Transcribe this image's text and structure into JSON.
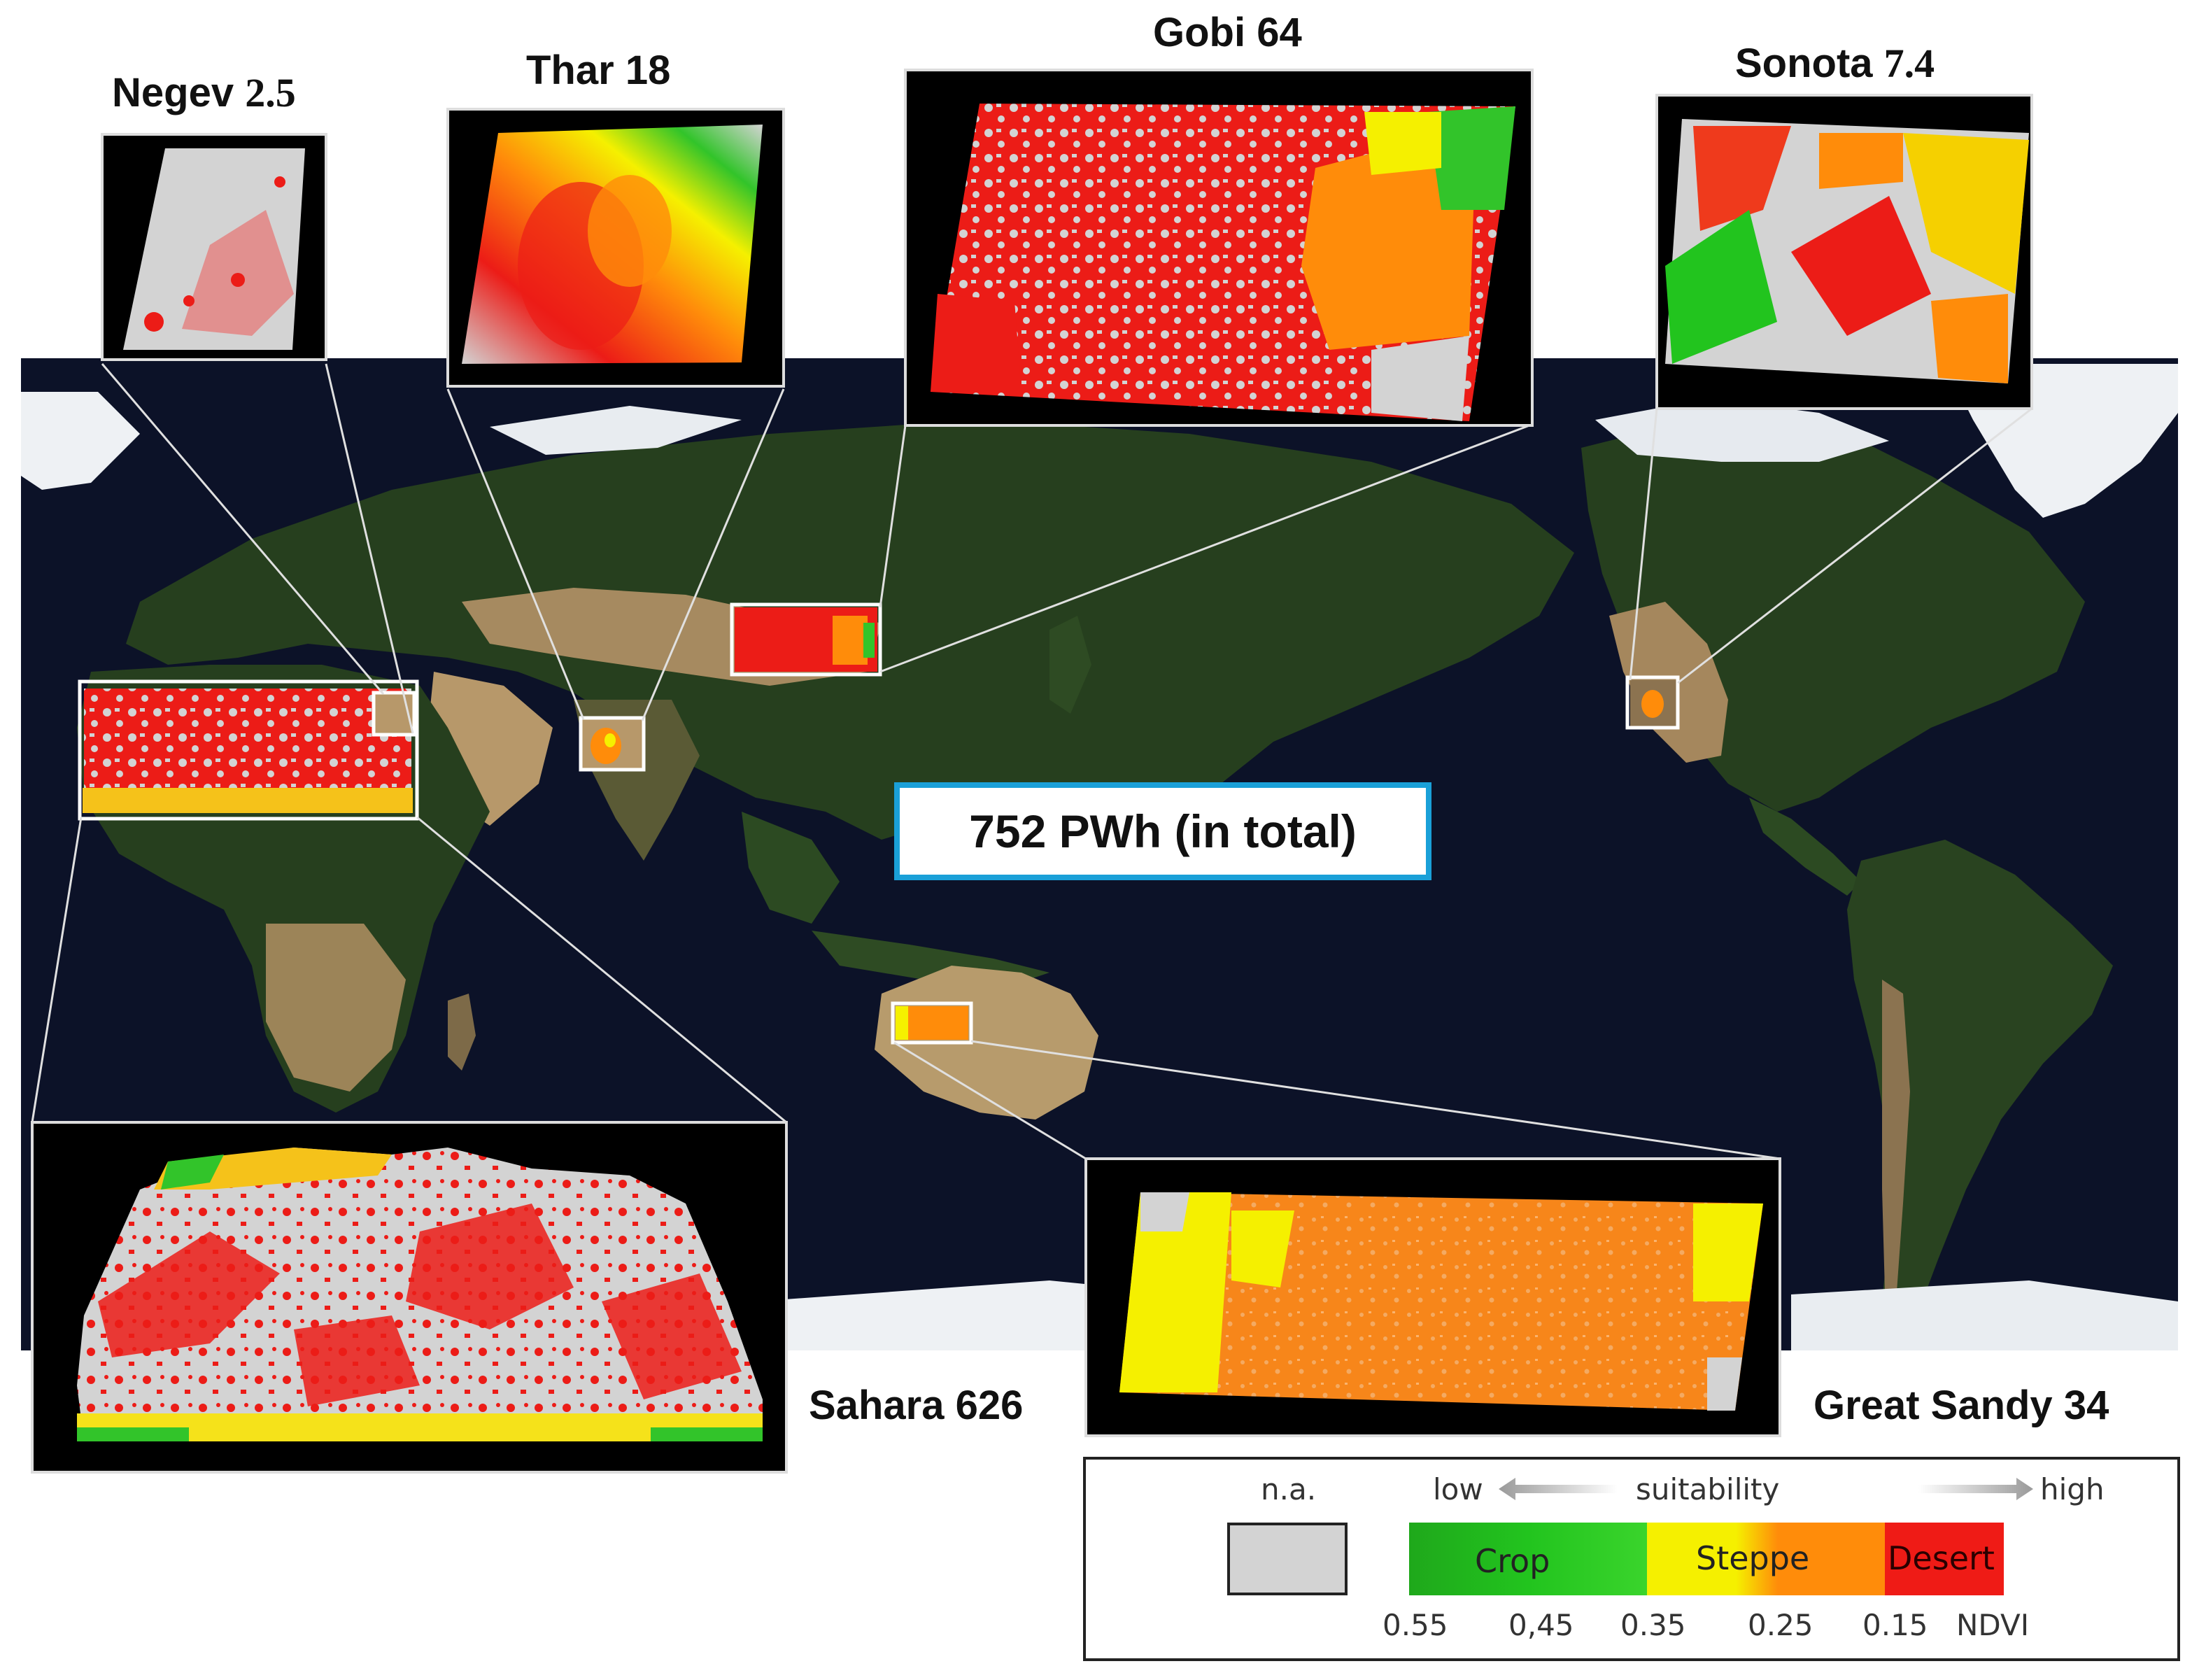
{
  "regions": [
    {
      "name": "Negev",
      "value": "2.5"
    },
    {
      "name": "Thar",
      "value": "18"
    },
    {
      "name": "Gobi",
      "value": "64"
    },
    {
      "name": "Sonota",
      "value": "7.4"
    },
    {
      "name": "Sahara",
      "value": "626"
    },
    {
      "name": "Great Sandy",
      "value": "34"
    }
  ],
  "total_label": "752 PWh (in total)",
  "legend": {
    "na_label": "n.a.",
    "low_label": "low",
    "axis_label": "suitability",
    "high_label": "high",
    "categories": [
      {
        "label": "Crop",
        "color": "#22c41e"
      },
      {
        "label": "Steppe",
        "color": "#f5f000"
      },
      {
        "label": "Desert",
        "color": "#ef1b16"
      }
    ],
    "ticks": [
      "0.55",
      "0,45",
      "0.35",
      "0.25",
      "0.15"
    ],
    "unit_label": "NDVI",
    "na_color": "#d3d3d3"
  },
  "colors": {
    "ocean": "#0c1228",
    "land_green": "#263f1e",
    "land_desert": "#b7986a",
    "ice": "#eef1f4",
    "accent_border": "#1aa0d8",
    "crop": "#22c41e",
    "steppe": "#f5f000",
    "orange": "#ff8c0a",
    "desert": "#ef1b16",
    "na": "#d3d3d3"
  }
}
